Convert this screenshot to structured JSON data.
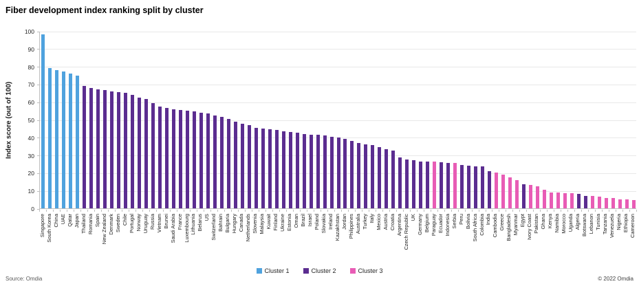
{
  "title": "Fiber development index ranking split by cluster",
  "source": "Source: Omdia",
  "copyright": "© 2022 Omdia",
  "chart_data": {
    "type": "bar",
    "title": "Fiber development index ranking split by cluster",
    "xlabel": "",
    "ylabel": "Index score (out of 100)",
    "ylim": [
      0,
      100
    ],
    "ytick_interval": 10,
    "grid": true,
    "legend_position": "bottom-center",
    "clusters": [
      {
        "id": 1,
        "name": "Cluster 1",
        "color": "#4FA2DE"
      },
      {
        "id": 2,
        "name": "Cluster 2",
        "color": "#5B2D90"
      },
      {
        "id": 3,
        "name": "Cluster 3",
        "color": "#E85CB5"
      }
    ],
    "points": [
      {
        "country": "Singapore",
        "value": 98,
        "cluster": 1
      },
      {
        "country": "South Korea",
        "value": 79,
        "cluster": 1
      },
      {
        "country": "China",
        "value": 78,
        "cluster": 1
      },
      {
        "country": "UAE",
        "value": 77,
        "cluster": 1
      },
      {
        "country": "Qatar",
        "value": 76,
        "cluster": 1
      },
      {
        "country": "Japan",
        "value": 75,
        "cluster": 1
      },
      {
        "country": "Thailand",
        "value": 69,
        "cluster": 2
      },
      {
        "country": "Romania",
        "value": 68,
        "cluster": 2
      },
      {
        "country": "Spain",
        "value": 67,
        "cluster": 2
      },
      {
        "country": "New Zealand",
        "value": 66.5,
        "cluster": 2
      },
      {
        "country": "Denmark",
        "value": 66,
        "cluster": 2
      },
      {
        "country": "Sweden",
        "value": 65.5,
        "cluster": 2
      },
      {
        "country": "Chile",
        "value": 65,
        "cluster": 2
      },
      {
        "country": "Portugal",
        "value": 64,
        "cluster": 2
      },
      {
        "country": "Norway",
        "value": 62.5,
        "cluster": 2
      },
      {
        "country": "Uruguay",
        "value": 61.5,
        "cluster": 2
      },
      {
        "country": "Russia",
        "value": 59.5,
        "cluster": 2
      },
      {
        "country": "Vietnam",
        "value": 57.5,
        "cluster": 2
      },
      {
        "country": "Brunei",
        "value": 56.5,
        "cluster": 2
      },
      {
        "country": "Saudi Arabia",
        "value": 56,
        "cluster": 2
      },
      {
        "country": "France",
        "value": 55.5,
        "cluster": 2
      },
      {
        "country": "Luxembourg",
        "value": 55,
        "cluster": 2
      },
      {
        "country": "Lithuania",
        "value": 54.5,
        "cluster": 2
      },
      {
        "country": "Belarus",
        "value": 54,
        "cluster": 2
      },
      {
        "country": "US",
        "value": 53.5,
        "cluster": 2
      },
      {
        "country": "Switzerland",
        "value": 52.5,
        "cluster": 2
      },
      {
        "country": "Bahrain",
        "value": 51.5,
        "cluster": 2
      },
      {
        "country": "Bulgaria",
        "value": 50.5,
        "cluster": 2
      },
      {
        "country": "Hungary",
        "value": 49,
        "cluster": 2
      },
      {
        "country": "Canada",
        "value": 47.5,
        "cluster": 2
      },
      {
        "country": "Netherlands",
        "value": 47,
        "cluster": 2
      },
      {
        "country": "Slovenia",
        "value": 45.5,
        "cluster": 2
      },
      {
        "country": "Malaysia",
        "value": 45,
        "cluster": 2
      },
      {
        "country": "Kuwait",
        "value": 44.5,
        "cluster": 2
      },
      {
        "country": "Finland",
        "value": 44,
        "cluster": 2
      },
      {
        "country": "Ukraine",
        "value": 43.5,
        "cluster": 2
      },
      {
        "country": "Estonia",
        "value": 43,
        "cluster": 2
      },
      {
        "country": "Oman",
        "value": 42.5,
        "cluster": 2
      },
      {
        "country": "Brazil",
        "value": 42,
        "cluster": 2
      },
      {
        "country": "Israel",
        "value": 41.5,
        "cluster": 2
      },
      {
        "country": "Poland",
        "value": 41.5,
        "cluster": 2
      },
      {
        "country": "Slovakia",
        "value": 41,
        "cluster": 2
      },
      {
        "country": "Ireland",
        "value": 40.5,
        "cluster": 2
      },
      {
        "country": "Kazakhstan",
        "value": 40,
        "cluster": 2
      },
      {
        "country": "Jordan",
        "value": 39,
        "cluster": 2
      },
      {
        "country": "Philippines",
        "value": 38,
        "cluster": 2
      },
      {
        "country": "Australia",
        "value": 37,
        "cluster": 2
      },
      {
        "country": "Turkey",
        "value": 36,
        "cluster": 2
      },
      {
        "country": "Italy",
        "value": 35.5,
        "cluster": 2
      },
      {
        "country": "Mexico",
        "value": 34.5,
        "cluster": 2
      },
      {
        "country": "Austria",
        "value": 33.5,
        "cluster": 2
      },
      {
        "country": "Croatia",
        "value": 32.5,
        "cluster": 2
      },
      {
        "country": "Argentina",
        "value": 28.5,
        "cluster": 2
      },
      {
        "country": "Czech Republic",
        "value": 27.5,
        "cluster": 2
      },
      {
        "country": "UK",
        "value": 27,
        "cluster": 2
      },
      {
        "country": "Germany",
        "value": 26.5,
        "cluster": 2
      },
      {
        "country": "Belgium",
        "value": 26.5,
        "cluster": 2
      },
      {
        "country": "Paraguay",
        "value": 26.5,
        "cluster": 3
      },
      {
        "country": "Ecuador",
        "value": 26,
        "cluster": 2
      },
      {
        "country": "Indonesia",
        "value": 25.5,
        "cluster": 2
      },
      {
        "country": "Serbia",
        "value": 25.5,
        "cluster": 3
      },
      {
        "country": "Peru",
        "value": 24.5,
        "cluster": 2
      },
      {
        "country": "Bolivia",
        "value": 24,
        "cluster": 2
      },
      {
        "country": "South Africa",
        "value": 23.5,
        "cluster": 2
      },
      {
        "country": "Colombia",
        "value": 23.5,
        "cluster": 2
      },
      {
        "country": "India",
        "value": 21,
        "cluster": 2
      },
      {
        "country": "Cambodia",
        "value": 20,
        "cluster": 3
      },
      {
        "country": "Greece",
        "value": 19,
        "cluster": 3
      },
      {
        "country": "Bangladesh",
        "value": 17.5,
        "cluster": 3
      },
      {
        "country": "Myanmar",
        "value": 16,
        "cluster": 3
      },
      {
        "country": "Egypt",
        "value": 13.5,
        "cluster": 2
      },
      {
        "country": "Ivory Coast",
        "value": 13,
        "cluster": 3
      },
      {
        "country": "Pakistan",
        "value": 12.5,
        "cluster": 3
      },
      {
        "country": "Ghana",
        "value": 10.5,
        "cluster": 3
      },
      {
        "country": "Kenya",
        "value": 9,
        "cluster": 3
      },
      {
        "country": "Namibia",
        "value": 9,
        "cluster": 3
      },
      {
        "country": "Morocco",
        "value": 8.5,
        "cluster": 3
      },
      {
        "country": "Uganda",
        "value": 8.5,
        "cluster": 3
      },
      {
        "country": "Algeria",
        "value": 8,
        "cluster": 2
      },
      {
        "country": "Botswana",
        "value": 7,
        "cluster": 2
      },
      {
        "country": "Lebanon",
        "value": 7,
        "cluster": 3
      },
      {
        "country": "Tunisia",
        "value": 6.5,
        "cluster": 3
      },
      {
        "country": "Tanzania",
        "value": 6,
        "cluster": 3
      },
      {
        "country": "Venezuela",
        "value": 6,
        "cluster": 3
      },
      {
        "country": "Nigeria",
        "value": 5,
        "cluster": 3
      },
      {
        "country": "Ethiopia",
        "value": 5,
        "cluster": 3
      },
      {
        "country": "Cameroon",
        "value": 4.5,
        "cluster": 3
      }
    ]
  }
}
